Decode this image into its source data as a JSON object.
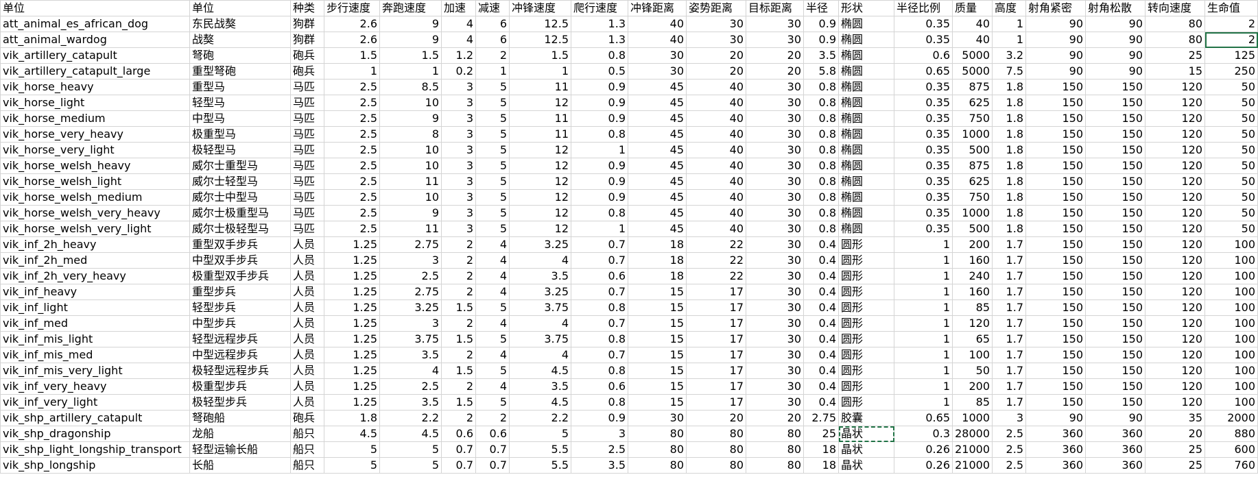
{
  "table": {
    "header": [
      "单位",
      "单位",
      "种类",
      "步行速度",
      "奔跑速度",
      "加速",
      "减速",
      "冲锋速度",
      "爬行速度",
      "冲锋距离",
      "姿势距离",
      "目标距离",
      "半径",
      "形状",
      "半径比例",
      "质量",
      "高度",
      "射角紧密",
      "射角松散",
      "转向速度",
      "生命值"
    ],
    "rows": [
      [
        "att_animal_es_african_dog",
        "东民战獒",
        "狗群",
        2.6,
        9,
        4,
        6,
        12.5,
        1.3,
        40,
        30,
        30,
        0.9,
        "椭圆",
        0.35,
        40,
        1,
        90,
        90,
        80,
        2
      ],
      [
        "att_animal_wardog",
        "战獒",
        "狗群",
        2.6,
        9,
        4,
        6,
        12.5,
        1.3,
        40,
        30,
        30,
        0.9,
        "椭圆",
        0.35,
        40,
        1,
        90,
        90,
        80,
        2
      ],
      [
        "vik_artillery_catapult",
        "弩砲",
        "砲兵",
        1.5,
        1.5,
        1.2,
        2,
        1.5,
        0.8,
        30,
        20,
        20,
        3.5,
        "椭圆",
        0.6,
        5000,
        3.2,
        90,
        90,
        25,
        125
      ],
      [
        "vik_artillery_catapult_large",
        "重型弩砲",
        "砲兵",
        1,
        1,
        0.2,
        1,
        1,
        0.5,
        30,
        20,
        20,
        5.8,
        "椭圆",
        0.65,
        5000,
        7.5,
        90,
        90,
        15,
        250
      ],
      [
        "vik_horse_heavy",
        "重型马",
        "马匹",
        2.5,
        8.5,
        3,
        5,
        11,
        0.9,
        45,
        40,
        30,
        0.8,
        "椭圆",
        0.35,
        875,
        1.8,
        150,
        150,
        120,
        50
      ],
      [
        "vik_horse_light",
        "轻型马",
        "马匹",
        2.5,
        10,
        3,
        5,
        12,
        0.9,
        45,
        40,
        30,
        0.8,
        "椭圆",
        0.35,
        625,
        1.8,
        150,
        150,
        120,
        50
      ],
      [
        "vik_horse_medium",
        "中型马",
        "马匹",
        2.5,
        9,
        3,
        5,
        11,
        0.9,
        45,
        40,
        30,
        0.8,
        "椭圆",
        0.35,
        750,
        1.8,
        150,
        150,
        120,
        50
      ],
      [
        "vik_horse_very_heavy",
        "极重型马",
        "马匹",
        2.5,
        8,
        3,
        5,
        11,
        0.8,
        45,
        40,
        30,
        0.8,
        "椭圆",
        0.35,
        1000,
        1.8,
        150,
        150,
        120,
        50
      ],
      [
        "vik_horse_very_light",
        "极轻型马",
        "马匹",
        2.5,
        10,
        3,
        5,
        12,
        1,
        45,
        40,
        30,
        0.8,
        "椭圆",
        0.35,
        500,
        1.8,
        150,
        150,
        120,
        50
      ],
      [
        "vik_horse_welsh_heavy",
        "威尔士重型马",
        "马匹",
        2.5,
        10,
        3,
        5,
        12,
        0.9,
        45,
        40,
        30,
        0.8,
        "椭圆",
        0.35,
        875,
        1.8,
        150,
        150,
        120,
        50
      ],
      [
        "vik_horse_welsh_light",
        "威尔士轻型马",
        "马匹",
        2.5,
        11,
        3,
        5,
        12,
        0.9,
        45,
        40,
        30,
        0.8,
        "椭圆",
        0.35,
        625,
        1.8,
        150,
        150,
        120,
        50
      ],
      [
        "vik_horse_welsh_medium",
        "威尔士中型马",
        "马匹",
        2.5,
        10,
        3,
        5,
        12,
        0.9,
        45,
        40,
        30,
        0.8,
        "椭圆",
        0.35,
        750,
        1.8,
        150,
        150,
        120,
        50
      ],
      [
        "vik_horse_welsh_very_heavy",
        "威尔士极重型马",
        "马匹",
        2.5,
        9,
        3,
        5,
        12,
        0.8,
        45,
        40,
        30,
        0.8,
        "椭圆",
        0.35,
        1000,
        1.8,
        150,
        150,
        120,
        50
      ],
      [
        "vik_horse_welsh_very_light",
        "威尔士极轻型马",
        "马匹",
        2.5,
        11,
        3,
        5,
        12,
        1,
        45,
        40,
        30,
        0.8,
        "椭圆",
        0.35,
        500,
        1.8,
        150,
        150,
        120,
        50
      ],
      [
        "vik_inf_2h_heavy",
        "重型双手步兵",
        "人员",
        1.25,
        2.75,
        2,
        4,
        3.25,
        0.7,
        18,
        22,
        30,
        0.4,
        "圆形",
        1,
        200,
        1.7,
        150,
        150,
        120,
        100
      ],
      [
        "vik_inf_2h_med",
        "中型双手步兵",
        "人员",
        1.25,
        3,
        2,
        4,
        4,
        0.7,
        18,
        22,
        30,
        0.4,
        "圆形",
        1,
        160,
        1.7,
        150,
        150,
        120,
        100
      ],
      [
        "vik_inf_2h_very_heavy",
        "极重型双手步兵",
        "人员",
        1.25,
        2.5,
        2,
        4,
        3.5,
        0.6,
        18,
        22,
        30,
        0.4,
        "圆形",
        1,
        240,
        1.7,
        150,
        150,
        120,
        100
      ],
      [
        "vik_inf_heavy",
        "重型步兵",
        "人员",
        1.25,
        2.75,
        2,
        4,
        3.25,
        0.7,
        15,
        17,
        30,
        0.4,
        "圆形",
        1,
        160,
        1.7,
        150,
        150,
        120,
        100
      ],
      [
        "vik_inf_light",
        "轻型步兵",
        "人员",
        1.25,
        3.25,
        1.5,
        5,
        3.75,
        0.8,
        15,
        17,
        30,
        0.4,
        "圆形",
        1,
        85,
        1.7,
        150,
        150,
        120,
        100
      ],
      [
        "vik_inf_med",
        "中型步兵",
        "人员",
        1.25,
        3,
        2,
        4,
        4,
        0.7,
        15,
        17,
        30,
        0.4,
        "圆形",
        1,
        120,
        1.7,
        150,
        150,
        120,
        100
      ],
      [
        "vik_inf_mis_light",
        "轻型远程步兵",
        "人员",
        1.25,
        3.75,
        1.5,
        5,
        3.75,
        0.8,
        15,
        17,
        30,
        0.4,
        "圆形",
        1,
        65,
        1.7,
        150,
        150,
        120,
        100
      ],
      [
        "vik_inf_mis_med",
        "中型远程步兵",
        "人员",
        1.25,
        3.5,
        2,
        4,
        4,
        0.7,
        15,
        17,
        30,
        0.4,
        "圆形",
        1,
        100,
        1.7,
        150,
        150,
        120,
        100
      ],
      [
        "vik_inf_mis_very_light",
        "极轻型远程步兵",
        "人员",
        1.25,
        4,
        1.5,
        5,
        4.5,
        0.8,
        15,
        17,
        30,
        0.4,
        "圆形",
        1,
        50,
        1.7,
        150,
        150,
        120,
        100
      ],
      [
        "vik_inf_very_heavy",
        "极重型步兵",
        "人员",
        1.25,
        2.5,
        2,
        4,
        3.5,
        0.6,
        15,
        17,
        30,
        0.4,
        "圆形",
        1,
        200,
        1.7,
        150,
        150,
        120,
        100
      ],
      [
        "vik_inf_very_light",
        "极轻型步兵",
        "人员",
        1.25,
        3.5,
        1.5,
        5,
        4.5,
        0.8,
        15,
        17,
        30,
        0.4,
        "圆形",
        1,
        85,
        1.7,
        150,
        150,
        120,
        100
      ],
      [
        "vik_shp_artillery_catapult",
        "弩砲船",
        "砲兵",
        1.8,
        2.2,
        2,
        2,
        2.2,
        0.9,
        30,
        20,
        20,
        2.75,
        "胶囊",
        0.65,
        1000,
        3,
        90,
        90,
        35,
        2000
      ],
      [
        "vik_shp_dragonship",
        "龙船",
        "船只",
        4.5,
        4.5,
        0.6,
        0.6,
        5,
        3,
        80,
        80,
        80,
        25,
        "晶状",
        0.3,
        28000,
        2.5,
        360,
        360,
        20,
        880
      ],
      [
        "vik_shp_light_longship_transport",
        "轻型运输长船",
        "船只",
        5,
        5,
        0.7,
        0.7,
        5.5,
        2.5,
        80,
        80,
        80,
        18,
        "晶状",
        0.26,
        21000,
        2.5,
        360,
        360,
        25,
        600
      ],
      [
        "vik_shp_longship",
        "长船",
        "船只",
        5,
        5,
        0.7,
        0.7,
        5.5,
        3.5,
        80,
        80,
        80,
        18,
        "晶状",
        0.26,
        21000,
        2.5,
        360,
        360,
        25,
        760
      ]
    ]
  }
}
